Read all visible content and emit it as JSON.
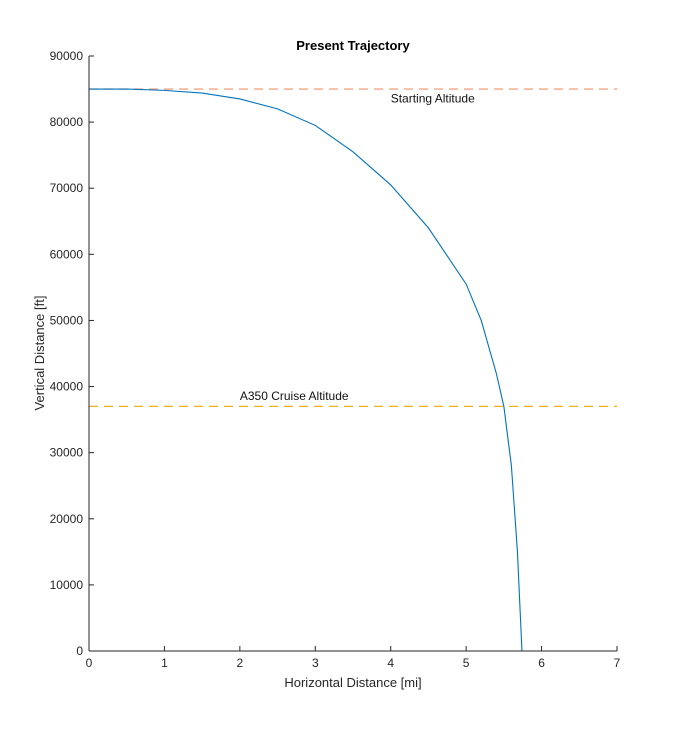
{
  "chart_data": {
    "type": "line",
    "title": "Present Trajectory",
    "xlabel": "Horizontal Distance [mi]",
    "ylabel": "Vertical Distance [ft]",
    "xlim": [
      0,
      7
    ],
    "ylim": [
      0,
      90000
    ],
    "xticks": [
      "0",
      "1",
      "2",
      "3",
      "4",
      "5",
      "6",
      "7"
    ],
    "yticks": [
      "0",
      "10000",
      "20000",
      "30000",
      "40000",
      "50000",
      "60000",
      "70000",
      "80000",
      "90000"
    ],
    "grid": false,
    "series": [
      {
        "color": "#0072BD",
        "x": [
          0,
          0.5,
          1.0,
          1.5,
          2.0,
          2.5,
          3.0,
          3.5,
          4.0,
          4.5,
          5.0,
          5.2,
          5.4,
          5.5,
          5.6,
          5.68,
          5.74
        ],
        "y": [
          85000,
          85000,
          84800,
          84400,
          83500,
          82000,
          79500,
          75500,
          70500,
          64000,
          55500,
          50000,
          42000,
          37000,
          28000,
          15000,
          0
        ]
      }
    ],
    "reference_lines": [
      {
        "label": "Starting Altitude",
        "y": 85000,
        "color": "#F4A582",
        "style": "dashed"
      },
      {
        "label": "A350 Cruise Altitude",
        "y": 37000,
        "color": "#EDB120",
        "style": "dashed"
      }
    ],
    "annotations": [
      {
        "text": "Starting Altitude",
        "x": 4.0,
        "y": 83000
      },
      {
        "text": "A350 Cruise Altitude",
        "x": 2.0,
        "y": 38000
      }
    ]
  }
}
